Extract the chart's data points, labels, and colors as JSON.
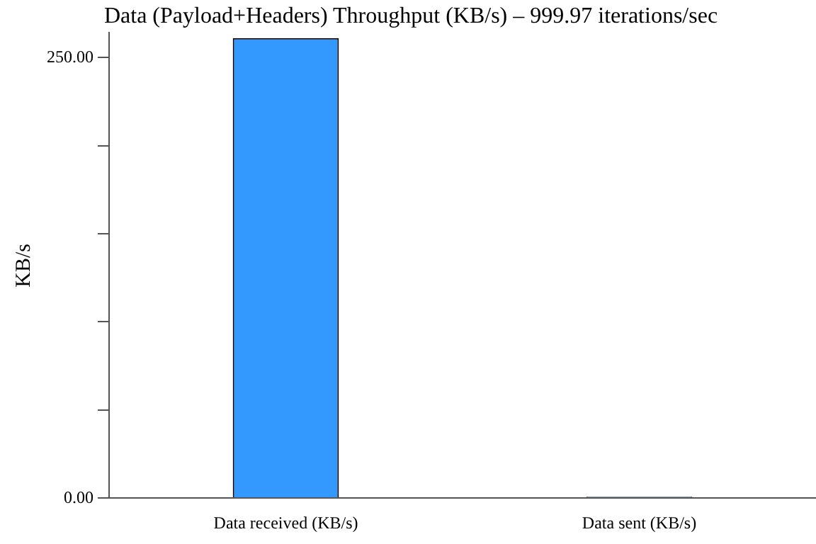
{
  "chart_data": {
    "type": "bar",
    "title": "Data (Payload+Headers) Throughput (KB/s) – 999.97 iterations/sec",
    "ylabel": "KB/s",
    "categories": [
      "Data received (KB/s)",
      "Data sent (KB/s)"
    ],
    "values": [
      261,
      0
    ],
    "color": "#3399ff",
    "ylim": [
      0,
      264
    ],
    "yticks": [
      {
        "value": 0,
        "label": "0.00"
      },
      {
        "value": 50,
        "label": null
      },
      {
        "value": 100,
        "label": null
      },
      {
        "value": 150,
        "label": null
      },
      {
        "value": 200,
        "label": null
      },
      {
        "value": 250,
        "label": "250.00"
      }
    ],
    "grid": false,
    "legend": false
  }
}
